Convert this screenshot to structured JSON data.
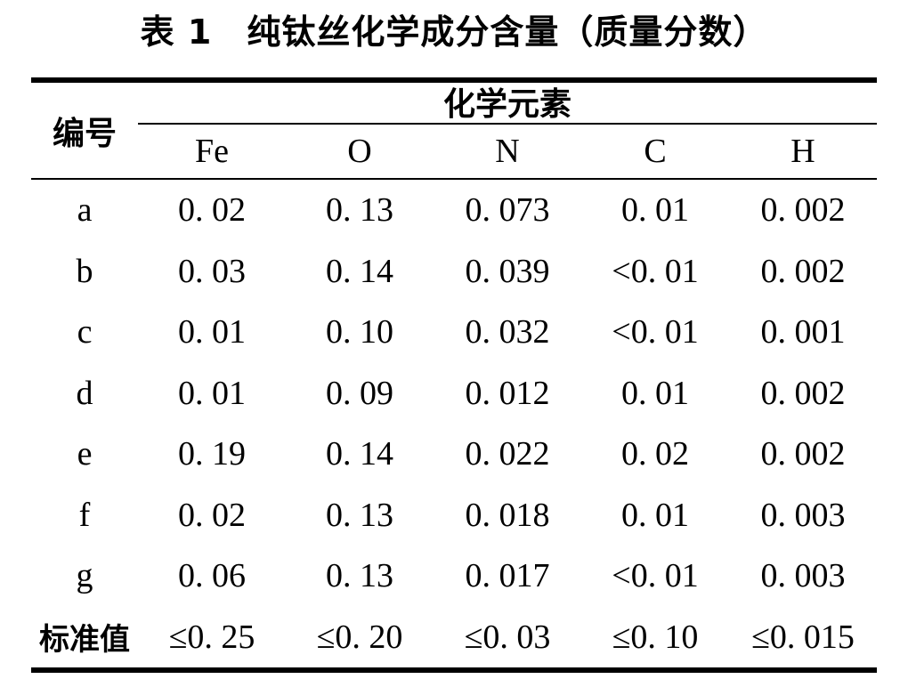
{
  "caption": "表 1　纯钛丝化学成分含量（质量分数）",
  "table": {
    "header": {
      "id_label": "编号",
      "group_label": "化学元素",
      "columns": [
        "Fe",
        "O",
        "N",
        "C",
        "H"
      ]
    },
    "rows": [
      {
        "id": "a",
        "values": [
          "0. 02",
          "0. 13",
          "0. 073",
          "0. 01",
          "0. 002"
        ]
      },
      {
        "id": "b",
        "values": [
          "0. 03",
          "0. 14",
          "0. 039",
          "<0. 01",
          "0. 002"
        ]
      },
      {
        "id": "c",
        "values": [
          "0. 01",
          "0. 10",
          "0. 032",
          "<0. 01",
          "0. 001"
        ]
      },
      {
        "id": "d",
        "values": [
          "0. 01",
          "0. 09",
          "0. 012",
          "0. 01",
          "0. 002"
        ]
      },
      {
        "id": "e",
        "values": [
          "0. 19",
          "0. 14",
          "0. 022",
          "0. 02",
          "0. 002"
        ]
      },
      {
        "id": "f",
        "values": [
          "0. 02",
          "0. 13",
          "0. 018",
          "0. 01",
          "0. 003"
        ]
      },
      {
        "id": "g",
        "values": [
          "0. 06",
          "0. 13",
          "0. 017",
          "<0. 01",
          "0. 003"
        ]
      },
      {
        "id": "标准值",
        "values": [
          "≤0. 25",
          "≤0. 20",
          "≤0. 03",
          "≤0. 10",
          "≤0. 015"
        ]
      }
    ],
    "colors": {
      "text": "#000000",
      "background": "#ffffff",
      "rule": "#000000"
    }
  }
}
